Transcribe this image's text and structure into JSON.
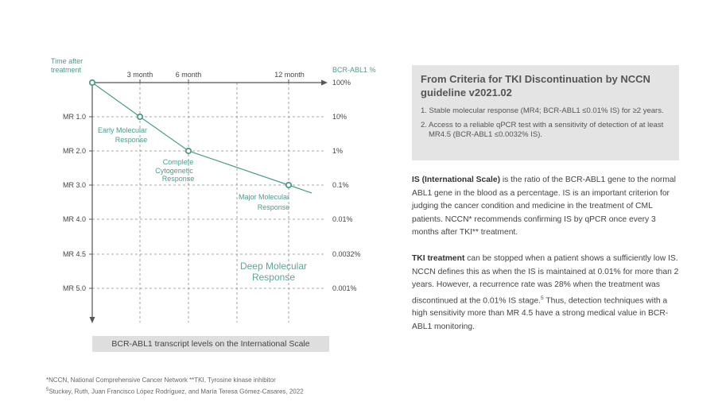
{
  "diagram": {
    "time_axis_label": [
      "Time after",
      "treatment"
    ],
    "value_axis_label": "BCR-ABL1 %",
    "month_labels": [
      "3 month",
      "6 month",
      "12 month"
    ],
    "mr_labels": [
      "MR 1.0",
      "MR 2.0",
      "MR 3.0",
      "MR 4.0",
      "MR 4.5",
      "MR 5.0"
    ],
    "pct_labels": [
      "100%",
      "10%",
      "1%",
      "0.1%",
      "0.01%",
      "0.0032%",
      "0.001%"
    ],
    "responses": {
      "early": [
        "Early Molecular",
        "Response"
      ],
      "complete": [
        "Complete",
        "Cytogenetic",
        "Response"
      ],
      "major": [
        "Major Molecular",
        "Response"
      ],
      "deep": [
        "Deep Molecular",
        "Response"
      ]
    },
    "caption": "BCR-ABL1 transcript levels on the International Scale",
    "colors": {
      "accent": "#4e9a8c",
      "deep": "#5aa69a",
      "axis": "#555555",
      "grid": "#8a8a8a"
    }
  },
  "footnotes": {
    "line1": "*NCCN, National Comprehensive Cancer Network **TKI, Tyrosine kinase inhibitor",
    "sup": "5",
    "line2": "Stuckey, Ruth, Juan Francisco López Rodríguez, and María Teresa Gómez-Casares, 2022"
  },
  "criteria": {
    "title": "From Criteria for TKI Discontinuation by NCCN guideline v2021.02",
    "items": [
      "1. Stable molecular response (MR4; BCR-ABL1 ≤0.01% IS) for ≥2 years.",
      "2. Access to a reliable qPCR test with a sensitivity of detection of at least MR4.5 (BCR-ABL1 ≤0.0032% IS)."
    ]
  },
  "paragraph1": {
    "bold": "IS (International Scale)",
    "text": " is the ratio of the BCR-ABL1 gene to the normal ABL1 gene in the blood as a percentage. IS is an important criterion for judging the cancer condition and medicine in the treatment of CML patients. NCCN* recommends confirming IS by qPCR once every 3 months after TKI** treatment."
  },
  "paragraph2": {
    "bold": "TKI treatment",
    "text1": " can be stopped when a patient shows a sufficiently low IS. NCCN defines this as when the IS is maintained at 0.01% for more than 2 years. However, a recurrence rate was 28% when the treatment was discontinued at the 0.01% IS stage.",
    "sup": "5",
    "text2": " Thus, detection techniques with a high sensitivity more than MR 4.5 have a strong medical value in BCR-ABL1 monitoring."
  }
}
